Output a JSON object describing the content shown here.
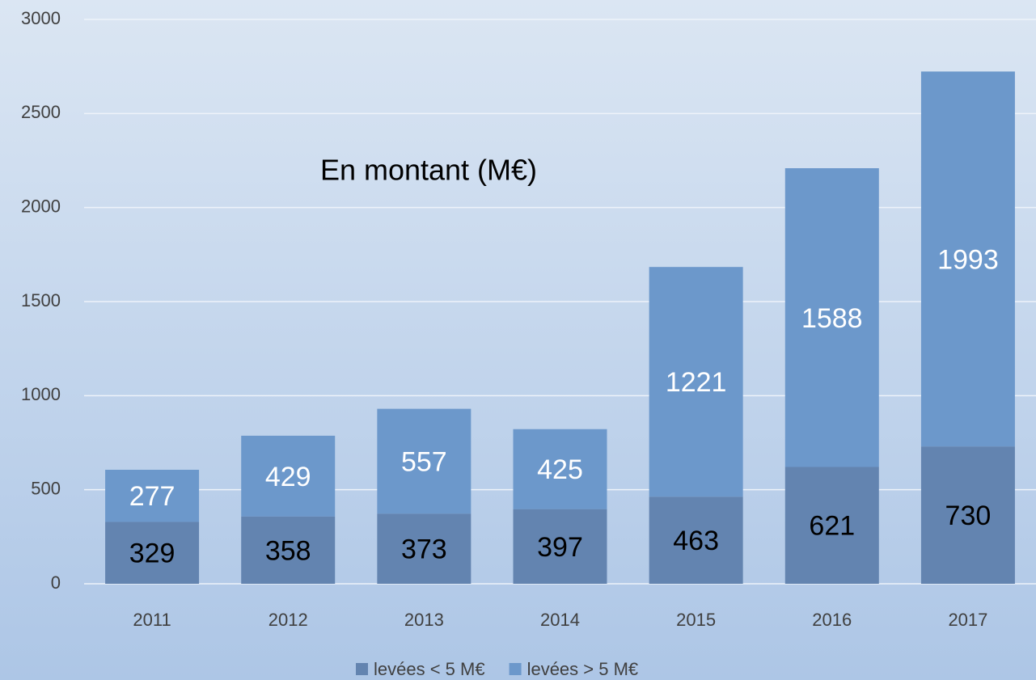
{
  "chart_data": {
    "type": "bar",
    "stacked": true,
    "title": "En montant (M€)",
    "categories": [
      "2011",
      "2012",
      "2013",
      "2014",
      "2015",
      "2016",
      "2017"
    ],
    "series": [
      {
        "name": "levées < 5 M€",
        "color": "#6384b0",
        "label_color": "#000000",
        "values": [
          329,
          358,
          373,
          397,
          463,
          621,
          730
        ]
      },
      {
        "name": "levées > 5 M€",
        "color": "#6c98cb",
        "label_color": "#ffffff",
        "values": [
          277,
          429,
          557,
          425,
          1221,
          1588,
          1993
        ]
      }
    ],
    "ylim": [
      0,
      3000
    ],
    "yticks": [
      0,
      500,
      1000,
      1500,
      2000,
      2500,
      3000
    ],
    "grid": true,
    "legend": "bottom"
  }
}
